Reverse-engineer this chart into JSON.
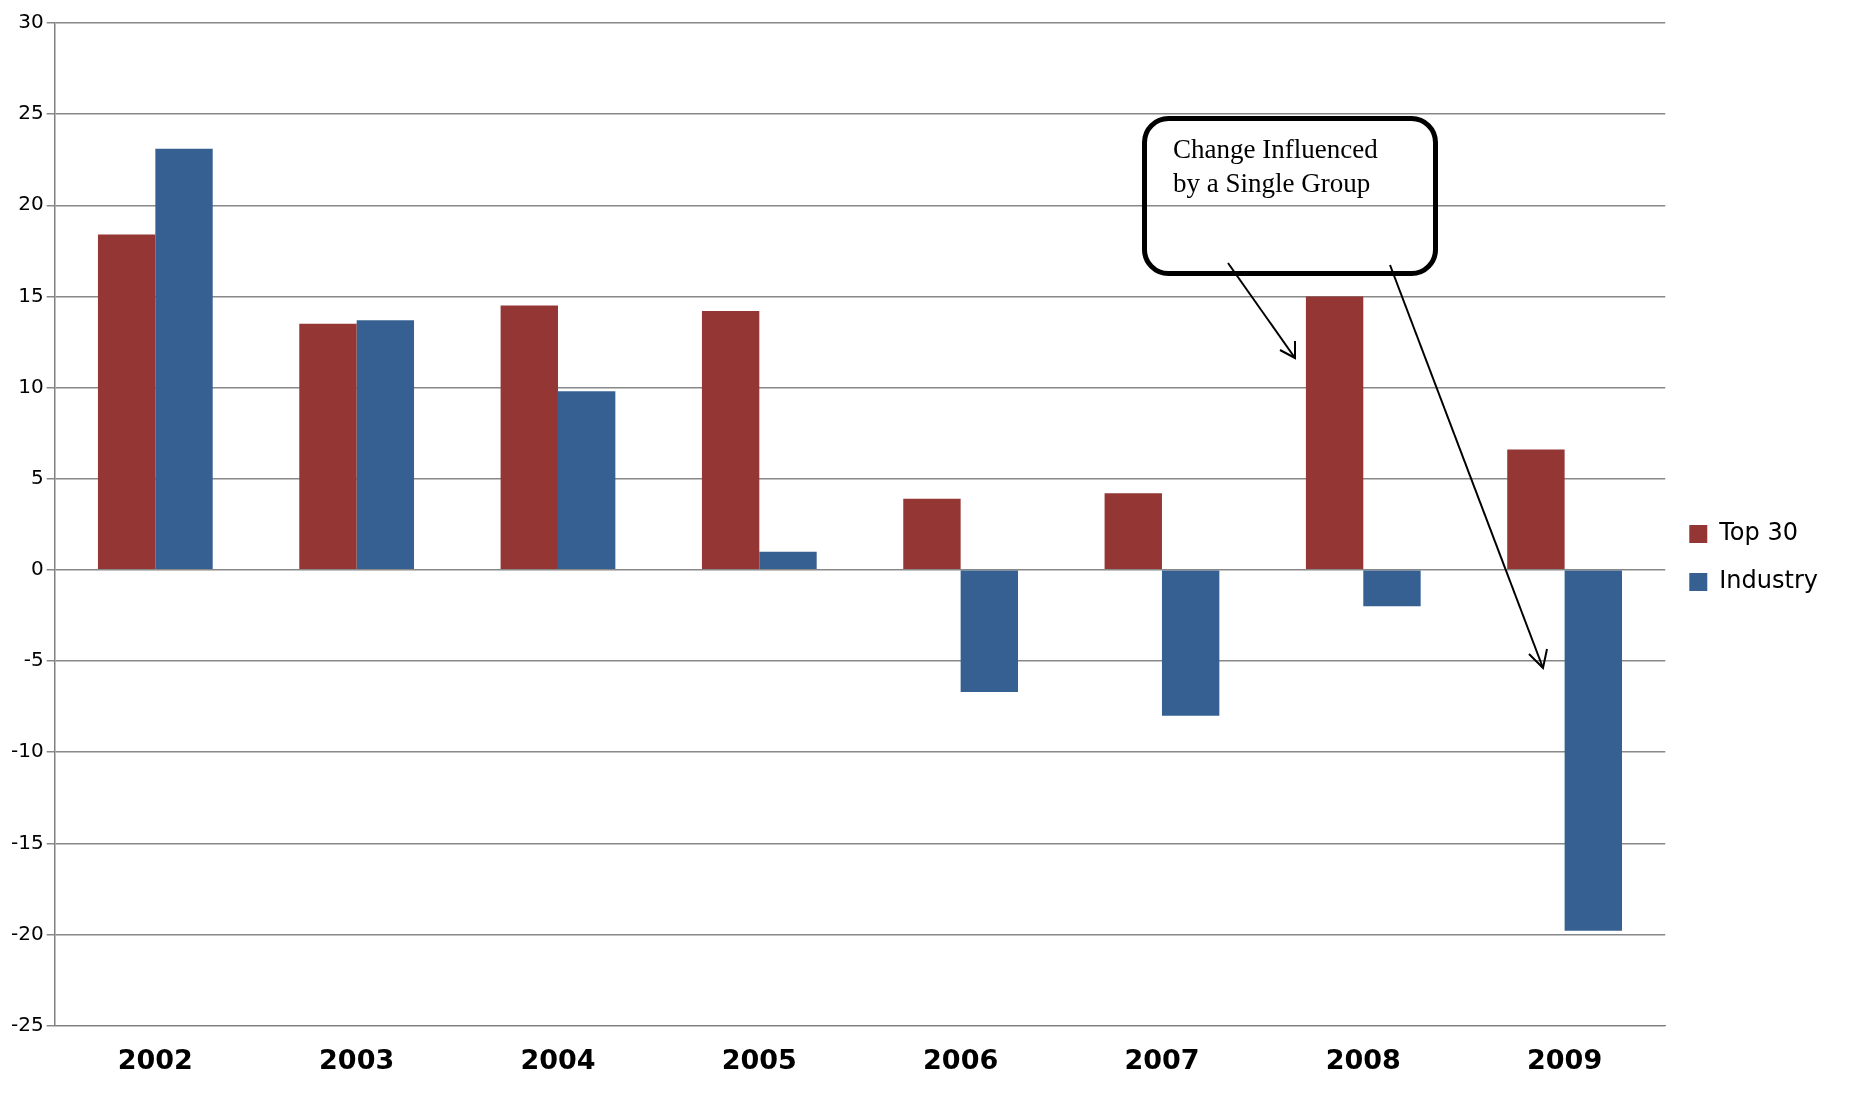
{
  "chart_data": {
    "type": "bar",
    "categories": [
      "2002",
      "2003",
      "2004",
      "2005",
      "2006",
      "2007",
      "2008",
      "2009"
    ],
    "series": [
      {
        "name": "Top 30",
        "color": "#943634",
        "values": [
          18.4,
          13.5,
          14.5,
          14.2,
          3.9,
          4.2,
          15.0,
          6.6
        ]
      },
      {
        "name": "Industry",
        "color": "#366092",
        "values": [
          23.1,
          13.7,
          9.8,
          1.0,
          -6.7,
          -8.0,
          -2.0,
          -19.8
        ]
      }
    ],
    "ylim": [
      -25,
      30
    ],
    "yticks": [
      -25,
      -20,
      -15,
      -10,
      -5,
      0,
      5,
      10,
      15,
      20,
      25,
      30
    ],
    "grid": "y",
    "legend": "right",
    "annotations": [
      "Change Influenced by a Single Group"
    ]
  }
}
